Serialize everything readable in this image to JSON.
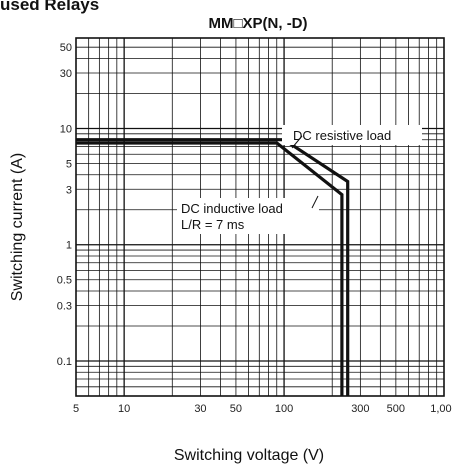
{
  "section_heading": "used Relays",
  "chart_data": {
    "type": "line",
    "title": "MM□XP(N, -D)",
    "xlabel": "Switching voltage (V)",
    "ylabel": "Switching current (A)",
    "x_scale": "log",
    "y_scale": "log",
    "xlim": [
      5,
      1000
    ],
    "ylim": [
      0.05,
      60
    ],
    "grid": true,
    "x_ticks": [
      {
        "value": 5,
        "label": "5"
      },
      {
        "value": 10,
        "label": "10"
      },
      {
        "value": 30,
        "label": "30"
      },
      {
        "value": 50,
        "label": "50"
      },
      {
        "value": 100,
        "label": "100"
      },
      {
        "value": 300,
        "label": "300"
      },
      {
        "value": 500,
        "label": "500"
      },
      {
        "value": 1000,
        "label": "1,000"
      }
    ],
    "y_ticks": [
      {
        "value": 0.1,
        "label": "0.1"
      },
      {
        "value": 0.3,
        "label": "0.3"
      },
      {
        "value": 0.5,
        "label": "0.5"
      },
      {
        "value": 1,
        "label": "1"
      },
      {
        "value": 3,
        "label": "3"
      },
      {
        "value": 5,
        "label": "5"
      },
      {
        "value": 10,
        "label": "10"
      },
      {
        "value": 30,
        "label": "30"
      },
      {
        "value": 50,
        "label": "50"
      }
    ],
    "series": [
      {
        "x": [
          5,
          100,
          250,
          250
        ],
        "y": [
          8,
          8,
          3.5,
          0.05
        ]
      },
      {
        "x": [
          5,
          90,
          230,
          230
        ],
        "y": [
          7.5,
          7.5,
          2.7,
          0.05
        ]
      }
    ],
    "annotations": [
      {
        "text": "DC resistive load"
      },
      {
        "text": "DC inductive load"
      },
      {
        "text": "L/R = 7 ms"
      }
    ]
  }
}
